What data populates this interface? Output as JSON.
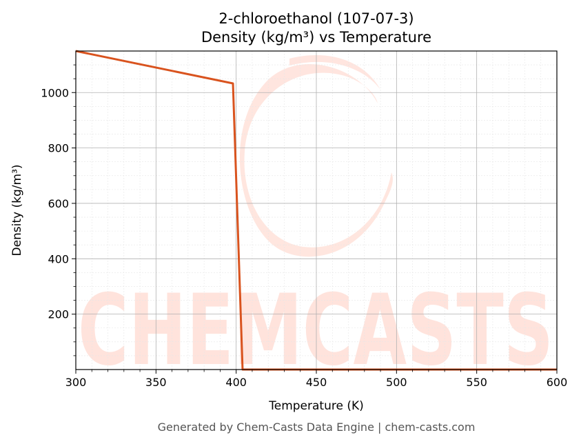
{
  "chart_data": {
    "type": "line",
    "title": "2-chloroethanol (107-07-3)",
    "subtitle": "Density (kg/m³) vs Temperature",
    "xlabel": "Temperature (K)",
    "ylabel": "Density (kg/m³)",
    "xlim": [
      300,
      600
    ],
    "ylim": [
      0,
      1150
    ],
    "xticks": [
      300,
      350,
      400,
      450,
      500,
      550,
      600
    ],
    "yticks": [
      200,
      400,
      600,
      800,
      1000
    ],
    "grid": true,
    "series": [
      {
        "color": "#d9531e",
        "x": [
          300,
          398,
          404,
          600
        ],
        "y": [
          1150,
          1033,
          0,
          0
        ]
      }
    ]
  },
  "watermark": "CHEMCASTS",
  "footer": "Generated by Chem-Casts Data Engine | chem-casts.com"
}
